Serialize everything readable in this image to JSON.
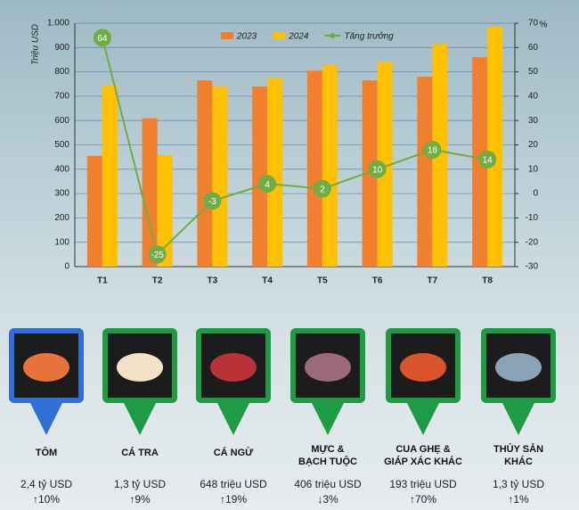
{
  "chart_data": {
    "type": "bar",
    "y_label": "Triệu USD",
    "y2_label": "%",
    "categories": [
      "T1",
      "T2",
      "T3",
      "T4",
      "T5",
      "T6",
      "T7",
      "T8"
    ],
    "series": [
      {
        "name": "2023",
        "color": "#f07f2e",
        "values": [
          455,
          610,
          765,
          740,
          805,
          765,
          780,
          860
        ]
      },
      {
        "name": "2024",
        "color": "#ffc000",
        "values": [
          745,
          458,
          740,
          775,
          828,
          840,
          915,
          985
        ]
      },
      {
        "name": "Tăng trưởng",
        "color": "#70ad47",
        "type": "line",
        "axis": "y2",
        "values": [
          64,
          -25,
          -3,
          4,
          2,
          10,
          18,
          14
        ]
      }
    ],
    "ylim": [
      0,
      1000
    ],
    "yticks": [
      0,
      100,
      200,
      300,
      400,
      500,
      600,
      700,
      800,
      900,
      {
        "value": 1000,
        "label": "1.000"
      }
    ],
    "y2lim": [
      -30,
      70
    ],
    "y2ticks": [
      -30,
      -20,
      -10,
      0,
      10,
      20,
      30,
      40,
      50,
      60,
      70
    ],
    "grid": true,
    "legend": "top"
  },
  "products": [
    {
      "name": "TÔM",
      "value": "2,4 tỷ USD",
      "change": "↑10%"
    },
    {
      "name": "CÁ TRA",
      "value": "1,3 tỷ USD",
      "change": "↑9%"
    },
    {
      "name": "CÁ NGỪ",
      "value": "648 triệu USD",
      "change": "↑19%"
    },
    {
      "name": "MỰC & BẠCH TUỘC",
      "value": "406 triệu USD",
      "change": "↓3%"
    },
    {
      "name": "CUA GHẸ & GIÁP XÁC KHÁC",
      "value": "193 triệu USD",
      "change": "↑70%"
    },
    {
      "name": "THỦY SẢN KHÁC",
      "value": "1,3 tỷ USD",
      "change": "↑1%"
    }
  ]
}
